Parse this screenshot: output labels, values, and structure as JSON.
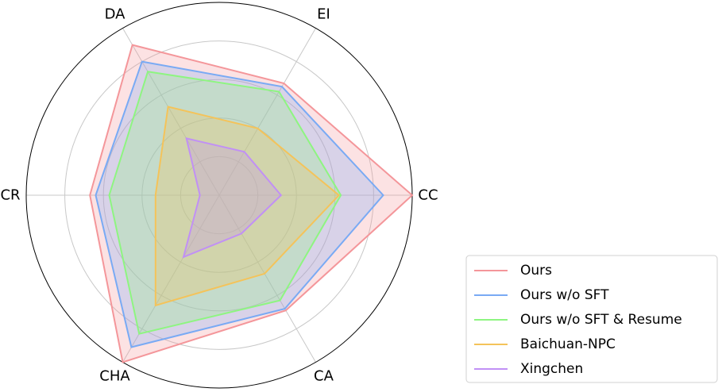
{
  "chart_data": {
    "type": "radar",
    "axes": [
      "CC",
      "EI",
      "DA",
      "CR",
      "CHA",
      "CA"
    ],
    "rmax": 1.0,
    "grid": true,
    "legend_position": "bottom-right",
    "series": [
      {
        "name": "Ours",
        "color": "#f4969a",
        "fill": "#f6c9cc",
        "values": [
          1.0,
          0.67,
          0.9,
          0.67,
          1.0,
          0.69
        ]
      },
      {
        "name": "Ours w/o SFT",
        "color": "#79aaf4",
        "fill": "#a9b5e6",
        "values": [
          0.85,
          0.65,
          0.8,
          0.64,
          0.91,
          0.68
        ]
      },
      {
        "name": "Ours w/o SFT & Resume",
        "color": "#8ef581",
        "fill": "#c0e4c8",
        "values": [
          0.63,
          0.62,
          0.74,
          0.57,
          0.83,
          0.63
        ]
      },
      {
        "name": "Baichuan-NPC",
        "color": "#f4c35a",
        "fill": "#dcd6a4",
        "values": [
          0.62,
          0.4,
          0.53,
          0.33,
          0.66,
          0.47
        ]
      },
      {
        "name": "Xingchen",
        "color": "#c190f5",
        "fill": "#c5b0c8",
        "values": [
          0.32,
          0.26,
          0.34,
          0.1,
          0.37,
          0.23
        ]
      }
    ]
  }
}
